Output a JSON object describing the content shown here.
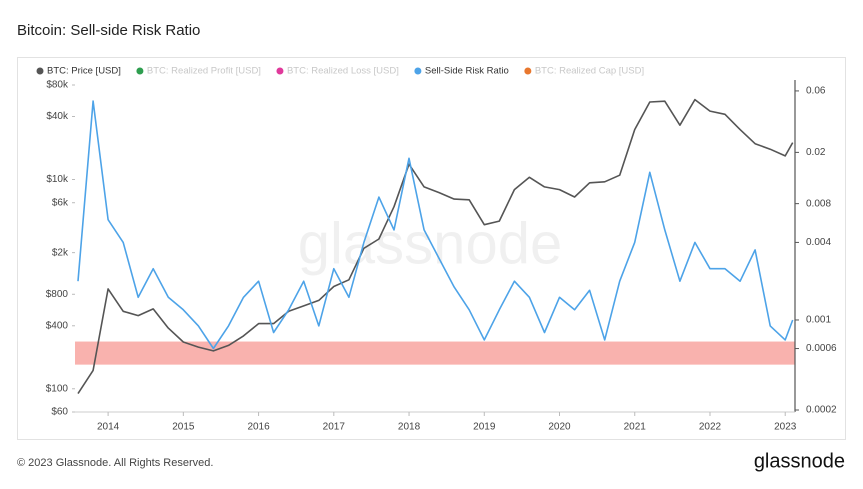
{
  "chart_data": {
    "type": "line",
    "title": "Bitcoin: Sell-side Risk Ratio",
    "footer": "© 2023 Glassnode. All Rights Reserved.",
    "brand": "glassnode",
    "watermark": "glassnode",
    "x": [
      2013.6,
      2013.8,
      2014.0,
      2014.2,
      2014.4,
      2014.6,
      2014.8,
      2015.0,
      2015.2,
      2015.4,
      2015.6,
      2015.8,
      2016.0,
      2016.2,
      2016.4,
      2016.6,
      2016.8,
      2017.0,
      2017.2,
      2017.4,
      2017.6,
      2017.8,
      2018.0,
      2018.2,
      2018.4,
      2018.6,
      2018.8,
      2019.0,
      2019.2,
      2019.4,
      2019.6,
      2019.8,
      2020.0,
      2020.2,
      2020.4,
      2020.6,
      2020.8,
      2021.0,
      2021.2,
      2021.4,
      2021.6,
      2021.8,
      2022.0,
      2022.2,
      2022.4,
      2022.6,
      2022.8,
      2023.0,
      2023.1
    ],
    "xlim": [
      2013.56,
      2023.13
    ],
    "xticks": [
      2014,
      2015,
      2016,
      2017,
      2018,
      2019,
      2020,
      2021,
      2022,
      2023
    ],
    "ylim": [
      60,
      80000
    ],
    "log_y": true,
    "yticks": [
      {
        "value": 60,
        "label": "$60"
      },
      {
        "value": 100,
        "label": "$100"
      },
      {
        "value": 400,
        "label": "$400"
      },
      {
        "value": 800,
        "label": "$800"
      },
      {
        "value": 2000,
        "label": "$2k"
      },
      {
        "value": 6000,
        "label": "$6k"
      },
      {
        "value": 10000,
        "label": "$10k"
      },
      {
        "value": 40000,
        "label": "$40k"
      },
      {
        "value": 80000,
        "label": "$80k"
      }
    ],
    "y2lim": [
      0.000193,
      0.0667
    ],
    "log_y2": true,
    "y2ticks": [
      0.0002,
      0.0006,
      0.001,
      0.004,
      0.008,
      0.02,
      0.06
    ],
    "band": {
      "axis": "y2",
      "range": [
        0.00045,
        0.00068
      ],
      "color": "#f8a5a0"
    },
    "series": [
      {
        "name": "BTC: Price [USD]",
        "color": "#555555",
        "visible": true,
        "axis": "y",
        "values": [
          90,
          150,
          900,
          550,
          500,
          580,
          380,
          280,
          250,
          230,
          260,
          320,
          420,
          420,
          550,
          620,
          700,
          950,
          1100,
          2200,
          2700,
          5500,
          14000,
          8500,
          7500,
          6500,
          6400,
          3700,
          4000,
          8000,
          10500,
          8500,
          8000,
          6800,
          9300,
          9500,
          11000,
          30000,
          55000,
          56000,
          33000,
          58000,
          45000,
          42000,
          30000,
          22000,
          19500,
          16800,
          22500
        ]
      },
      {
        "name": "BTC: Realized Profit [USD]",
        "color": "#2e9e4f",
        "visible": false,
        "values": null
      },
      {
        "name": "BTC: Realized Loss [USD]",
        "color": "#e0399b",
        "visible": false,
        "values": null
      },
      {
        "name": "Sell-Side Risk Ratio",
        "color": "#4da3e8",
        "visible": true,
        "axis": "y2",
        "values": [
          0.002,
          0.05,
          0.006,
          0.004,
          0.0015,
          0.0025,
          0.0015,
          0.0012,
          0.0009,
          0.0006,
          0.0009,
          0.0015,
          0.002,
          0.0008,
          0.0012,
          0.002,
          0.0009,
          0.0025,
          0.0015,
          0.004,
          0.009,
          0.005,
          0.018,
          0.005,
          0.003,
          0.0018,
          0.0012,
          0.0007,
          0.0012,
          0.002,
          0.0015,
          0.0008,
          0.0015,
          0.0012,
          0.0017,
          0.0007,
          0.002,
          0.004,
          0.014,
          0.005,
          0.002,
          0.004,
          0.0025,
          0.0025,
          0.002,
          0.0035,
          0.0009,
          0.0007,
          0.001
        ]
      },
      {
        "name": "BTC: Realized Cap [USD]",
        "color": "#e8772e",
        "visible": false,
        "values": null
      }
    ]
  }
}
